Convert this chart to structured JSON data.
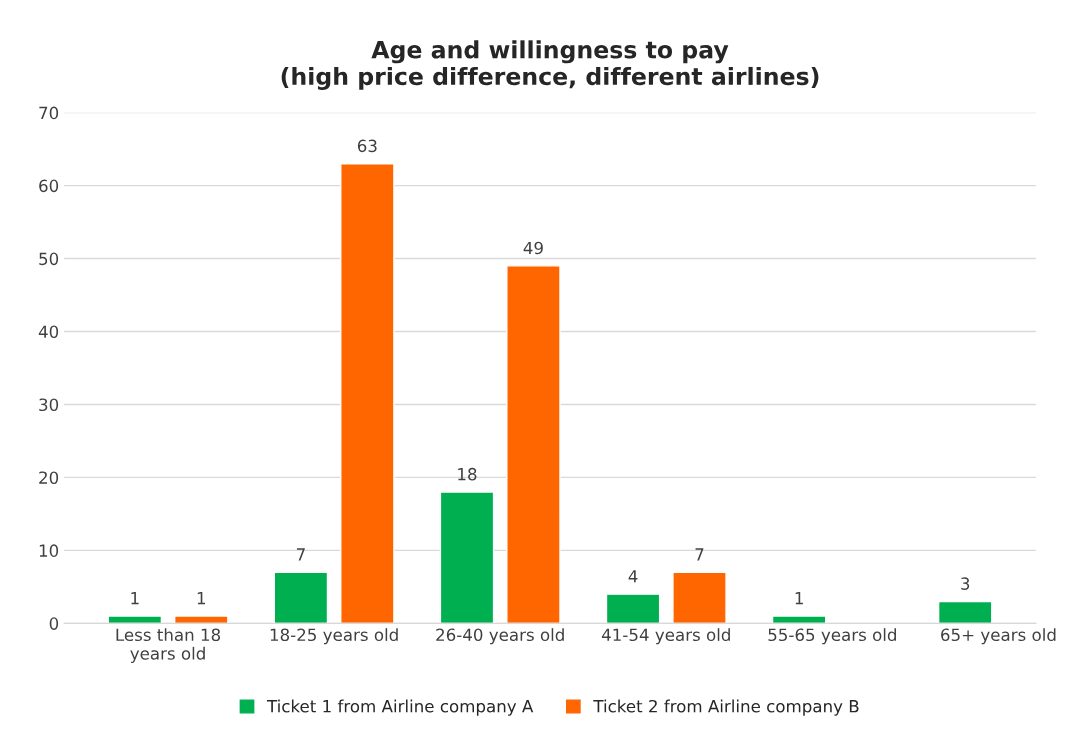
{
  "chart_data": {
    "type": "bar",
    "title": "Age and willingness to pay\n(high price difference, different airlines)",
    "categories": [
      "Less than 18\nyears old",
      "18-25 years old",
      "26-40 years old",
      "41-54 years old",
      "55-65 years old",
      "65+ years old"
    ],
    "series": [
      {
        "name": "Ticket 1 from Airline company A",
        "color": "#00b050",
        "values": [
          1,
          7,
          18,
          4,
          1,
          3
        ]
      },
      {
        "name": "Ticket 2 from Airline company B",
        "color": "#ff6600",
        "values": [
          1,
          63,
          49,
          7,
          null,
          null
        ]
      }
    ],
    "ylim": [
      0,
      70
    ],
    "yticks": [
      0,
      10,
      20,
      30,
      40,
      50,
      60,
      70
    ],
    "grid": "y",
    "legend": "bottom",
    "data_labels": true
  }
}
